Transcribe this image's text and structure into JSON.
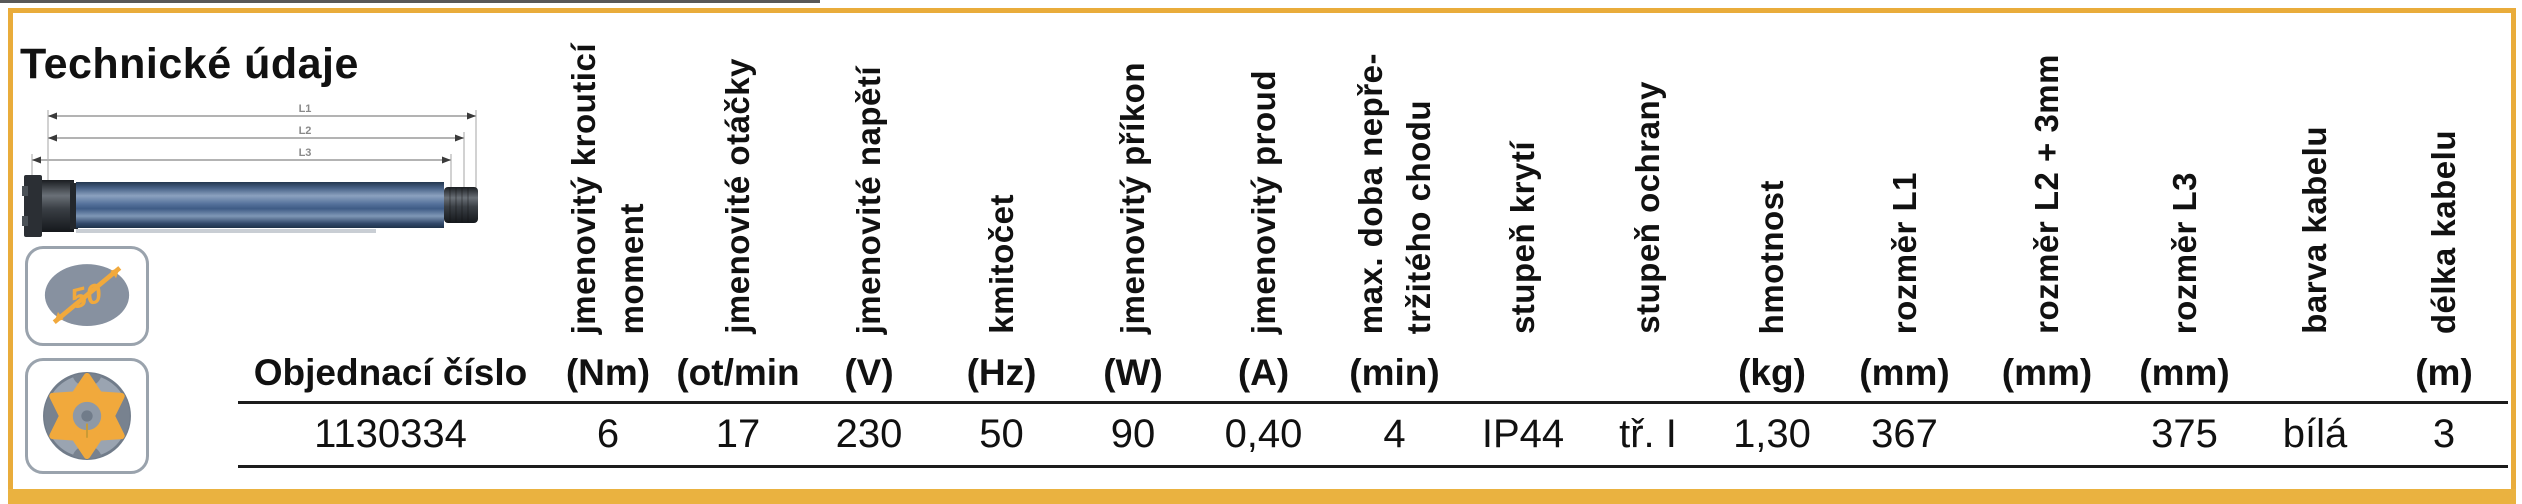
{
  "page": {
    "title": "Technické údaje"
  },
  "colors": {
    "accent_orange": "#E9AC3B",
    "bottom_bar_orange": "#EAB240",
    "badge_gray": "#8791A0",
    "badge_yellow": "#F1A93C",
    "tube_blue": "#54719B"
  },
  "diagram": {
    "dim_labels": [
      "L1",
      "L2",
      "L3"
    ]
  },
  "badges": {
    "diameter_label": "50"
  },
  "table": {
    "order_column": {
      "label": "Objednací číslo",
      "value": "1130334"
    },
    "columns": [
      {
        "header": "jmenovitý krouticí\nmoment",
        "unit": "(Nm)",
        "value": "6"
      },
      {
        "header": "jmenovité otáčky",
        "unit": "(ot/min",
        "value": "17"
      },
      {
        "header": "jmenovité napětí",
        "unit": "(V)",
        "value": "230"
      },
      {
        "header": "kmitočet",
        "unit": "(Hz)",
        "value": "50"
      },
      {
        "header": "jmenovitý příkon",
        "unit": "(W)",
        "value": "90"
      },
      {
        "header": "jmenovitý proud",
        "unit": "(A)",
        "value": "0,40"
      },
      {
        "header": "max. doba nepře-\ntržitého chodu",
        "unit": "(min)",
        "value": "4"
      },
      {
        "header": "stupeň krytí",
        "unit": "",
        "value": "IP44"
      },
      {
        "header": "stupeň ochrany",
        "unit": "",
        "value": "tř. I"
      },
      {
        "header": "hmotnost",
        "unit": "(kg)",
        "value": "1,30"
      },
      {
        "header": "rozměr L1",
        "unit": "(mm)",
        "value": "367"
      },
      {
        "header": "rozměr L2 + 3mm",
        "unit": "(mm)",
        "value": ""
      },
      {
        "header": "rozměr L3",
        "unit": "(mm)",
        "value": "375"
      },
      {
        "header": "barva kabelu",
        "unit": "",
        "value": "bílá"
      },
      {
        "header": "délka kabelu",
        "unit": "(m)",
        "value": "3"
      }
    ]
  }
}
